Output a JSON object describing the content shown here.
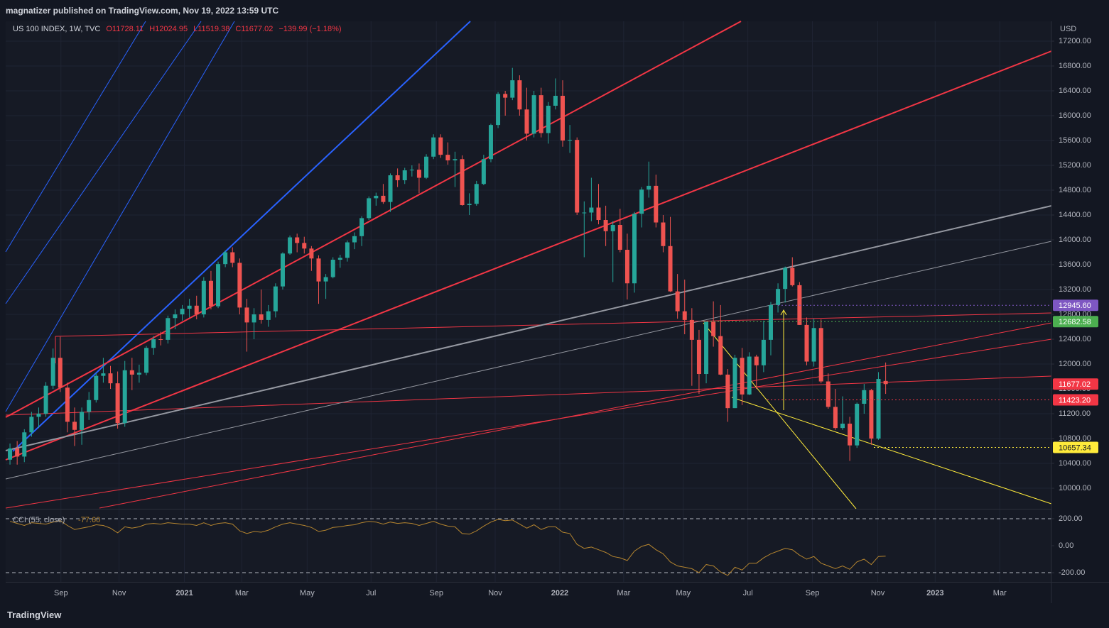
{
  "header": {
    "publisher": "magnatizer published on TradingView.com, Nov 19, 2022 13:59 UTC"
  },
  "footer": {
    "brand": "TradingView"
  },
  "chart_data": [
    {
      "type": "candlestick",
      "legend": {
        "symbol": "US 100 INDEX, 1W, TVC",
        "open": "O11728.11",
        "high": "H12024.95",
        "low": "L11519.38",
        "close": "C11677.02",
        "change": "−139.99 (−1.18%)"
      },
      "y_unit": "USD",
      "up_color": "#26a69a",
      "down_color": "#ef5350",
      "xlim": [
        -0.6,
        145.1
      ],
      "ylim": [
        9669,
        17520
      ],
      "grid": true,
      "xticks": [
        {
          "value": 7.1,
          "label": "Sep"
        },
        {
          "value": 15.2,
          "label": "Nov"
        },
        {
          "value": 24.3,
          "label": "2021"
        },
        {
          "value": 32.3,
          "label": "Mar"
        },
        {
          "value": 41.4,
          "label": "May"
        },
        {
          "value": 50.3,
          "label": "Jul"
        },
        {
          "value": 59.4,
          "label": "Sep"
        },
        {
          "value": 67.6,
          "label": "Nov"
        },
        {
          "value": 76.6,
          "label": "2022"
        },
        {
          "value": 85.5,
          "label": "Mar"
        },
        {
          "value": 93.8,
          "label": "May"
        },
        {
          "value": 102.8,
          "label": "Jul"
        },
        {
          "value": 111.8,
          "label": "Sep"
        },
        {
          "value": 120.9,
          "label": "Nov"
        },
        {
          "value": 128.9,
          "label": "2023"
        },
        {
          "value": 137.9,
          "label": "Mar"
        }
      ],
      "yticks": [
        {
          "value": 10000,
          "label": "10000.00"
        },
        {
          "value": 10400,
          "label": "10400.00"
        },
        {
          "value": 10800,
          "label": "10800.00"
        },
        {
          "value": 11200,
          "label": "11200.00"
        },
        {
          "value": 11600,
          "label": "11600.00"
        },
        {
          "value": 12000,
          "label": "12000.00"
        },
        {
          "value": 12400,
          "label": "12400.00"
        },
        {
          "value": 12800,
          "label": "12800.00"
        },
        {
          "value": 13200,
          "label": "13200.00"
        },
        {
          "value": 13600,
          "label": "13600.00"
        },
        {
          "value": 14000,
          "label": "14000.00"
        },
        {
          "value": 14400,
          "label": "14400.00"
        },
        {
          "value": 14800,
          "label": "14800.00"
        },
        {
          "value": 15200,
          "label": "15200.00"
        },
        {
          "value": 15600,
          "label": "15600.00"
        },
        {
          "value": 16000,
          "label": "16000.00"
        },
        {
          "value": 16400,
          "label": "16400.00"
        },
        {
          "value": 16800,
          "label": "16800.00"
        },
        {
          "value": 17200,
          "label": "17200.00"
        }
      ],
      "price_labels": [
        {
          "value": 12945.6,
          "label": "12945.60",
          "color": "#7e57c2"
        },
        {
          "value": 12682.58,
          "label": "12682.58",
          "color": "#4caf50"
        },
        {
          "value": 11677.02,
          "label": "11677.02",
          "color": "#f23645"
        },
        {
          "value": 11423.2,
          "label": "11423.20",
          "color": "#f23645"
        },
        {
          "value": 10657.34,
          "label": "10657.34",
          "color": "#ffeb3b"
        }
      ],
      "candles": [
        [
          10460,
          10720,
          10380,
          10640
        ],
        [
          10640,
          10760,
          10380,
          10510
        ],
        [
          10510,
          10950,
          10420,
          10900
        ],
        [
          10900,
          11230,
          10830,
          11150
        ],
        [
          11150,
          11300,
          10970,
          11200
        ],
        [
          11200,
          11710,
          11150,
          11650
        ],
        [
          11650,
          12250,
          11600,
          12100
        ],
        [
          12100,
          12440,
          11550,
          11620
        ],
        [
          11620,
          11700,
          10900,
          11070
        ],
        [
          11070,
          11300,
          10680,
          10940
        ],
        [
          10940,
          11300,
          10700,
          11230
        ],
        [
          11230,
          11550,
          11100,
          11420
        ],
        [
          11420,
          11850,
          11380,
          11810
        ],
        [
          11810,
          12100,
          11700,
          11850
        ],
        [
          11850,
          11970,
          11600,
          11690
        ],
        [
          11690,
          11880,
          10960,
          11050
        ],
        [
          11050,
          12050,
          10990,
          11900
        ],
        [
          11900,
          12100,
          11580,
          11830
        ],
        [
          11830,
          11990,
          11700,
          11860
        ],
        [
          11860,
          12290,
          11820,
          12260
        ],
        [
          12260,
          12450,
          12150,
          12400
        ],
        [
          12400,
          12520,
          12300,
          12390
        ],
        [
          12390,
          12780,
          12330,
          12740
        ],
        [
          12740,
          12880,
          12560,
          12800
        ],
        [
          12800,
          12950,
          12700,
          12890
        ],
        [
          12890,
          13050,
          12750,
          12940
        ],
        [
          12940,
          13100,
          12720,
          12800
        ],
        [
          12800,
          13400,
          12750,
          13340
        ],
        [
          13340,
          13500,
          12880,
          12930
        ],
        [
          12930,
          13650,
          12900,
          13610
        ],
        [
          13610,
          13830,
          13560,
          13800
        ],
        [
          13800,
          13880,
          13560,
          13630
        ],
        [
          13630,
          13700,
          12800,
          12910
        ],
        [
          12910,
          13050,
          12200,
          12670
        ],
        [
          12670,
          12900,
          12400,
          12800
        ],
        [
          12800,
          13200,
          12650,
          12710
        ],
        [
          12710,
          12950,
          12600,
          12850
        ],
        [
          12850,
          13300,
          12750,
          13250
        ],
        [
          13250,
          13800,
          13200,
          13780
        ],
        [
          13780,
          14070,
          13760,
          14040
        ],
        [
          14040,
          14100,
          13800,
          13950
        ],
        [
          13950,
          14050,
          13780,
          13860
        ],
        [
          13860,
          13900,
          13500,
          13700
        ],
        [
          13700,
          13750,
          12970,
          13330
        ],
        [
          13330,
          13450,
          13050,
          13400
        ],
        [
          13400,
          13720,
          13380,
          13680
        ],
        [
          13680,
          13760,
          13550,
          13710
        ],
        [
          13710,
          13990,
          13650,
          13960
        ],
        [
          13960,
          14120,
          13850,
          14060
        ],
        [
          14060,
          14380,
          13900,
          14350
        ],
        [
          14350,
          14700,
          14320,
          14670
        ],
        [
          14670,
          14760,
          14550,
          14710
        ],
        [
          14710,
          14900,
          14580,
          14610
        ],
        [
          14610,
          15070,
          14450,
          15040
        ],
        [
          15040,
          15150,
          14850,
          14960
        ],
        [
          14960,
          15160,
          14900,
          15120
        ],
        [
          15120,
          15200,
          15020,
          15130
        ],
        [
          15130,
          15230,
          14750,
          15000
        ],
        [
          15000,
          15380,
          14980,
          15340
        ],
        [
          15340,
          15700,
          15300,
          15650
        ],
        [
          15650,
          15700,
          15320,
          15370
        ],
        [
          15370,
          15570,
          15210,
          15280
        ],
        [
          15280,
          15420,
          14850,
          15300
        ],
        [
          15300,
          15360,
          14550,
          14560
        ],
        [
          14560,
          14750,
          14400,
          14580
        ],
        [
          14580,
          14950,
          14550,
          14900
        ],
        [
          14900,
          15370,
          14880,
          15300
        ],
        [
          15300,
          15870,
          15250,
          15850
        ],
        [
          15850,
          16380,
          15800,
          16350
        ],
        [
          16350,
          16400,
          16000,
          16290
        ],
        [
          16290,
          16770,
          16250,
          16570
        ],
        [
          16570,
          16650,
          16000,
          16100
        ],
        [
          16100,
          16450,
          15600,
          15710
        ],
        [
          15710,
          16400,
          15650,
          16330
        ],
        [
          16330,
          16450,
          15650,
          15720
        ],
        [
          15720,
          16220,
          15550,
          16160
        ],
        [
          16160,
          16600,
          16100,
          16320
        ],
        [
          16320,
          16570,
          15500,
          15600
        ],
        [
          15600,
          15850,
          15400,
          15610
        ],
        [
          15610,
          15650,
          14400,
          14440
        ],
        [
          14440,
          14620,
          13720,
          14440
        ],
        [
          14440,
          15000,
          14300,
          14520
        ],
        [
          14520,
          14900,
          14250,
          14320
        ],
        [
          14320,
          14550,
          13900,
          14140
        ],
        [
          14140,
          14300,
          13320,
          14240
        ],
        [
          14240,
          14500,
          13800,
          13840
        ],
        [
          13840,
          14100,
          13040,
          13300
        ],
        [
          13300,
          14450,
          13150,
          14420
        ],
        [
          14420,
          14850,
          14200,
          14810
        ],
        [
          14810,
          15260,
          14680,
          14870
        ],
        [
          14870,
          15050,
          14200,
          14280
        ],
        [
          14280,
          14400,
          13800,
          13900
        ],
        [
          13900,
          14370,
          13160,
          13170
        ],
        [
          13170,
          13450,
          12730,
          12850
        ],
        [
          12850,
          13360,
          12480,
          12710
        ],
        [
          12710,
          12900,
          11650,
          12390
        ],
        [
          12390,
          12550,
          11520,
          11840
        ],
        [
          11840,
          12690,
          11690,
          12680
        ],
        [
          12680,
          13010,
          12280,
          12450
        ],
        [
          12450,
          12950,
          11820,
          11830
        ],
        [
          11830,
          11920,
          11070,
          11290
        ],
        [
          11290,
          12150,
          11290,
          12100
        ],
        [
          12100,
          12260,
          11340,
          11510
        ],
        [
          11510,
          12190,
          11500,
          12120
        ],
        [
          12120,
          12150,
          11600,
          11980
        ],
        [
          11980,
          12700,
          11870,
          12390
        ],
        [
          12390,
          13000,
          12140,
          12950
        ],
        [
          12950,
          13300,
          12830,
          13210
        ],
        [
          13210,
          13570,
          12990,
          13550
        ],
        [
          13550,
          13720,
          13250,
          13270
        ],
        [
          13270,
          13320,
          12630,
          12630
        ],
        [
          12630,
          12750,
          11980,
          12040
        ],
        [
          12040,
          12730,
          11960,
          12580
        ],
        [
          12580,
          12720,
          11690,
          11720
        ],
        [
          11720,
          11850,
          11280,
          11310
        ],
        [
          11310,
          11600,
          10940,
          10970
        ],
        [
          10970,
          11480,
          10940,
          11040
        ],
        [
          11040,
          11150,
          10440,
          10690
        ],
        [
          10690,
          11380,
          10650,
          11360
        ],
        [
          11360,
          11680,
          11200,
          11580
        ],
        [
          11580,
          11600,
          10700,
          10800
        ],
        [
          10800,
          11870,
          10780,
          11760
        ],
        [
          11728.11,
          12024.95,
          11519.38,
          11677.02
        ]
      ]
    },
    {
      "type": "line",
      "name": "CCI (55, close)",
      "color": "#b5852f",
      "value_label": "-77.60",
      "xlim": [
        -0.6,
        145.1
      ],
      "ylim": [
        -268,
        268
      ],
      "yticks": [
        {
          "value": 200,
          "label": "200.00"
        },
        {
          "value": 0,
          "label": "0.00"
        },
        {
          "value": -200,
          "label": "-200.00"
        }
      ],
      "dashed_levels": [
        200,
        -200
      ],
      "values": [
        180,
        165,
        150,
        170,
        165,
        160,
        175,
        185,
        150,
        120,
        130,
        140,
        155,
        150,
        130,
        95,
        140,
        130,
        140,
        160,
        165,
        160,
        170,
        165,
        160,
        160,
        150,
        170,
        150,
        165,
        170,
        160,
        110,
        90,
        105,
        100,
        115,
        140,
        160,
        170,
        160,
        150,
        135,
        105,
        115,
        135,
        140,
        150,
        155,
        170,
        180,
        175,
        160,
        175,
        165,
        170,
        165,
        150,
        165,
        180,
        160,
        145,
        140,
        90,
        85,
        110,
        145,
        175,
        195,
        185,
        190,
        160,
        130,
        155,
        120,
        140,
        140,
        100,
        90,
        10,
        -20,
        -10,
        -30,
        -50,
        -80,
        -90,
        -110,
        -40,
        -5,
        10,
        -30,
        -60,
        -120,
        -150,
        -160,
        -170,
        -200,
        -140,
        -150,
        -195,
        -220,
        -160,
        -180,
        -130,
        -130,
        -90,
        -60,
        -40,
        -20,
        -30,
        -70,
        -100,
        -80,
        -130,
        -150,
        -170,
        -150,
        -175,
        -120,
        -100,
        -140,
        -80,
        -77.6
      ]
    }
  ]
}
